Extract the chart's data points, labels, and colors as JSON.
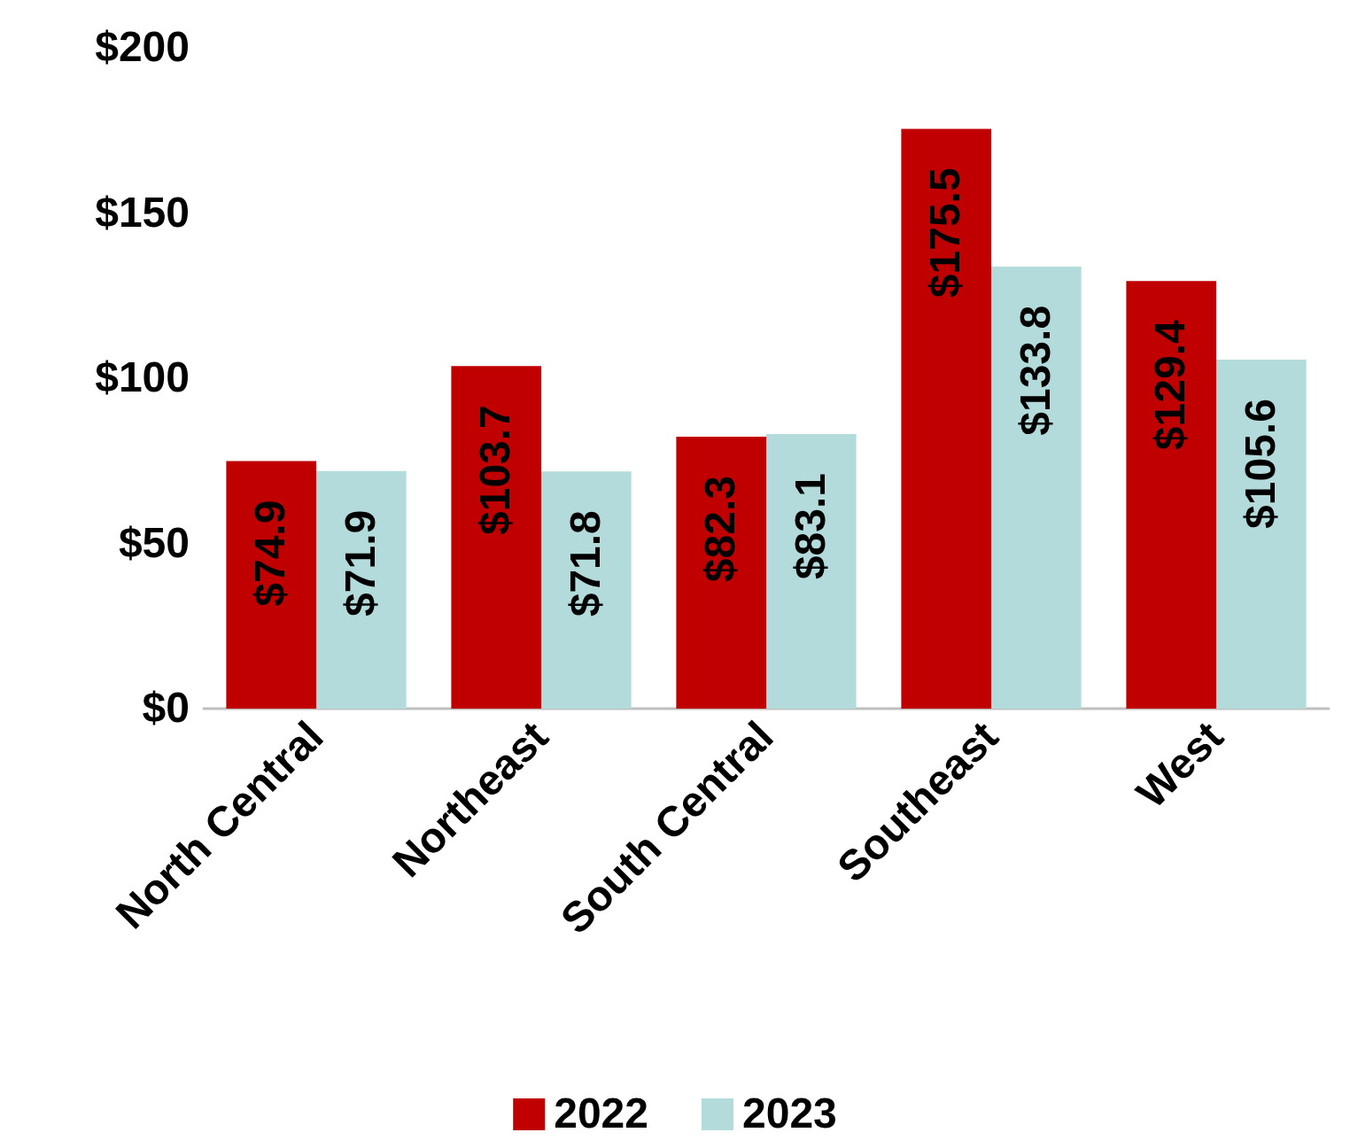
{
  "chart_data": {
    "type": "bar",
    "categories": [
      "North Central",
      "Northeast",
      "South Central",
      "Southeast",
      "West"
    ],
    "series": [
      {
        "name": "2022",
        "color": "#c00000",
        "values": [
          74.9,
          103.7,
          82.3,
          175.5,
          129.4
        ],
        "value_labels": [
          "$74.9",
          "$103.7",
          "$82.3",
          "$175.5",
          "$129.4"
        ]
      },
      {
        "name": "2023",
        "color": "#b3dbdb",
        "values": [
          71.9,
          71.8,
          83.1,
          133.8,
          105.6
        ],
        "value_labels": [
          "$71.9",
          "$71.8",
          "$83.1",
          "$133.8",
          "$105.6"
        ]
      }
    ],
    "ylim": [
      0,
      200
    ],
    "yticks": [
      {
        "value": 0,
        "label": "$0"
      },
      {
        "value": 50,
        "label": "$50"
      },
      {
        "value": 100,
        "label": "$100"
      },
      {
        "value": 150,
        "label": "$150"
      },
      {
        "value": 200,
        "label": "$200"
      }
    ],
    "grid": false,
    "legend": "bottom"
  }
}
